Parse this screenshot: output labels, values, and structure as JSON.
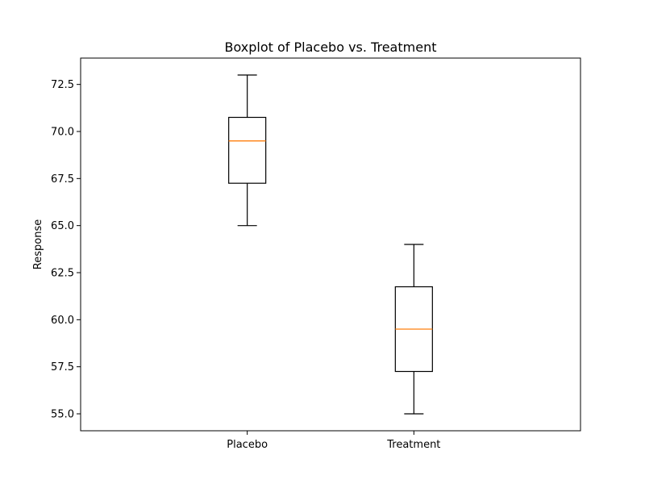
{
  "chart_data": {
    "type": "box",
    "title": "Boxplot of Placebo vs. Treatment",
    "xlabel": "",
    "ylabel": "Response",
    "categories": [
      "Placebo",
      "Treatment"
    ],
    "boxes": [
      {
        "category": "Placebo",
        "whisker_low": 65.0,
        "q1": 67.25,
        "median": 69.5,
        "q3": 70.75,
        "whisker_high": 73.0
      },
      {
        "category": "Treatment",
        "whisker_low": 55.0,
        "q1": 57.25,
        "median": 59.5,
        "q3": 61.75,
        "whisker_high": 64.0
      }
    ],
    "ylim": [
      54.1,
      73.9
    ],
    "yticks": [
      55.0,
      57.5,
      60.0,
      62.5,
      65.0,
      67.5,
      70.0,
      72.5
    ],
    "ytick_labels": [
      "55.0",
      "57.5",
      "60.0",
      "62.5",
      "65.0",
      "67.5",
      "70.0",
      "72.5"
    ],
    "grid": false,
    "box_color": "#000000",
    "median_color": "#ff7f0e"
  }
}
